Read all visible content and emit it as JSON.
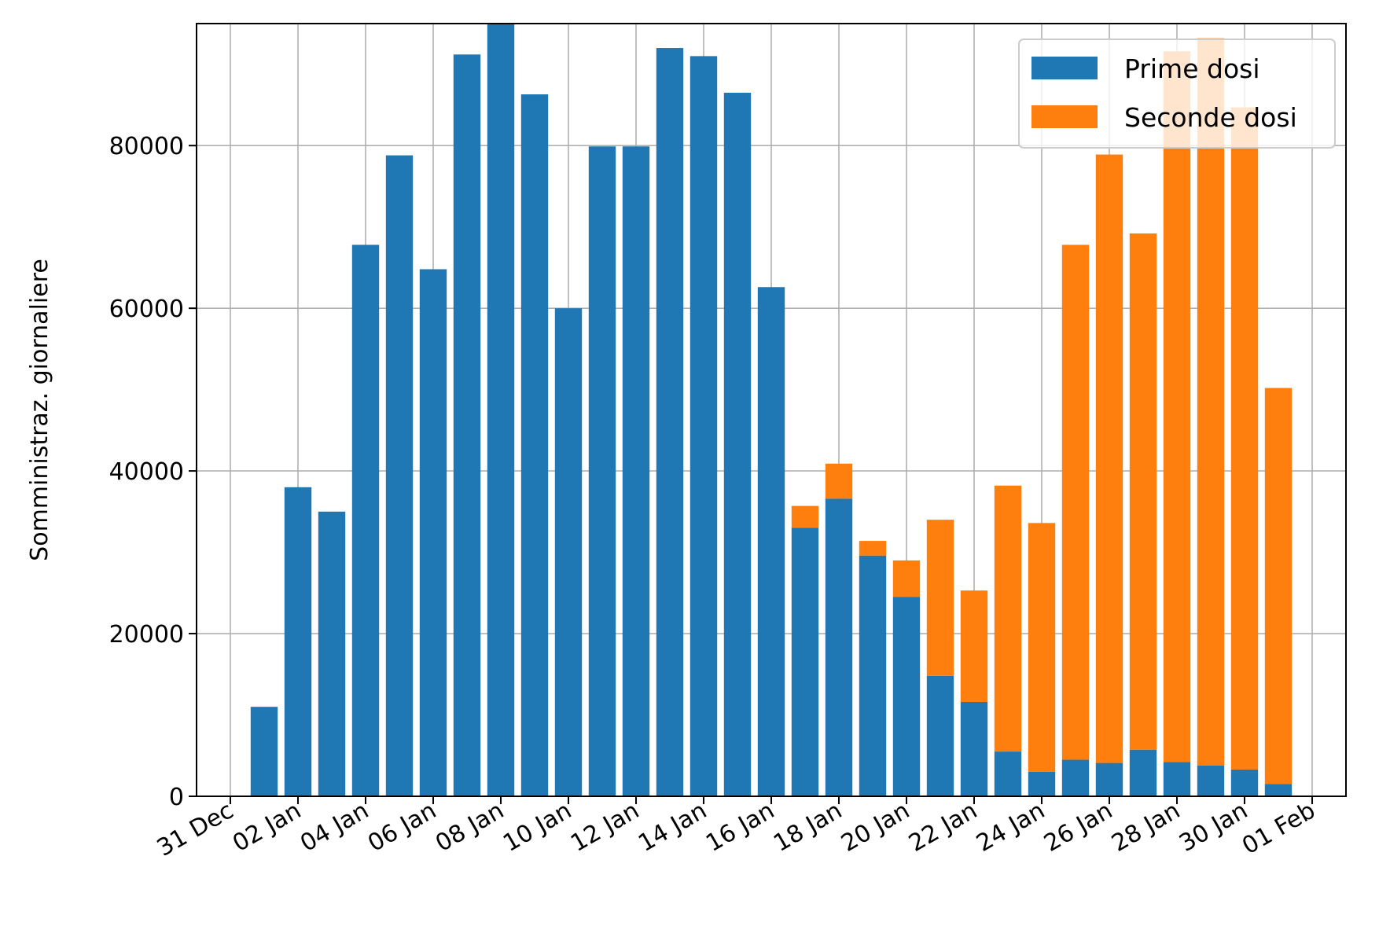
{
  "chart_data": {
    "type": "bar",
    "stacked": true,
    "ylabel": "Somministraz. giornaliere",
    "ylim": [
      0,
      95000
    ],
    "yticks": [
      "0",
      "20000",
      "40000",
      "60000",
      "80000"
    ],
    "xlim": [
      "2020-12-30",
      "2021-02-02"
    ],
    "xticks": [
      {
        "date": "2020-12-31",
        "label": "31 Dec"
      },
      {
        "date": "2021-01-02",
        "label": "02 Jan"
      },
      {
        "date": "2021-01-04",
        "label": "04 Jan"
      },
      {
        "date": "2021-01-06",
        "label": "06 Jan"
      },
      {
        "date": "2021-01-08",
        "label": "08 Jan"
      },
      {
        "date": "2021-01-10",
        "label": "10 Jan"
      },
      {
        "date": "2021-01-12",
        "label": "12 Jan"
      },
      {
        "date": "2021-01-14",
        "label": "14 Jan"
      },
      {
        "date": "2021-01-16",
        "label": "16 Jan"
      },
      {
        "date": "2021-01-18",
        "label": "18 Jan"
      },
      {
        "date": "2021-01-20",
        "label": "20 Jan"
      },
      {
        "date": "2021-01-22",
        "label": "22 Jan"
      },
      {
        "date": "2021-01-24",
        "label": "24 Jan"
      },
      {
        "date": "2021-01-26",
        "label": "26 Jan"
      },
      {
        "date": "2021-01-28",
        "label": "28 Jan"
      },
      {
        "date": "2021-01-30",
        "label": "30 Jan"
      },
      {
        "date": "2021-02-01",
        "label": "01 Feb"
      }
    ],
    "grid": true,
    "legend_position": "top-right",
    "x": [
      "2021-01-01",
      "2021-01-02",
      "2021-01-03",
      "2021-01-04",
      "2021-01-05",
      "2021-01-06",
      "2021-01-07",
      "2021-01-08",
      "2021-01-09",
      "2021-01-10",
      "2021-01-11",
      "2021-01-12",
      "2021-01-13",
      "2021-01-14",
      "2021-01-15",
      "2021-01-16",
      "2021-01-17",
      "2021-01-18",
      "2021-01-19",
      "2021-01-20",
      "2021-01-21",
      "2021-01-22",
      "2021-01-23",
      "2021-01-24",
      "2021-01-25",
      "2021-01-26",
      "2021-01-27",
      "2021-01-28",
      "2021-01-29",
      "2021-01-30",
      "2021-01-31",
      "2021-02-01"
    ],
    "series": [
      {
        "name": "Prime dosi",
        "color": "#1f77b4",
        "values": [
          11000,
          38000,
          35000,
          67800,
          78800,
          64800,
          91200,
          95000,
          86300,
          60000,
          79900,
          79900,
          92000,
          91000,
          86500,
          62600,
          33000,
          36600,
          29600,
          24500,
          14800,
          11600,
          5500,
          3000,
          4500,
          4100,
          5700,
          4200,
          3800,
          3300,
          1500,
          0
        ]
      },
      {
        "name": "Seconde dosi",
        "color": "#ff7f0e",
        "values": [
          0,
          0,
          0,
          0,
          0,
          0,
          0,
          0,
          0,
          0,
          0,
          0,
          0,
          0,
          0,
          0,
          2700,
          4300,
          1800,
          4500,
          19200,
          13700,
          32700,
          30600,
          63300,
          74800,
          63500,
          87400,
          89400,
          81400,
          48700,
          0
        ]
      }
    ]
  }
}
